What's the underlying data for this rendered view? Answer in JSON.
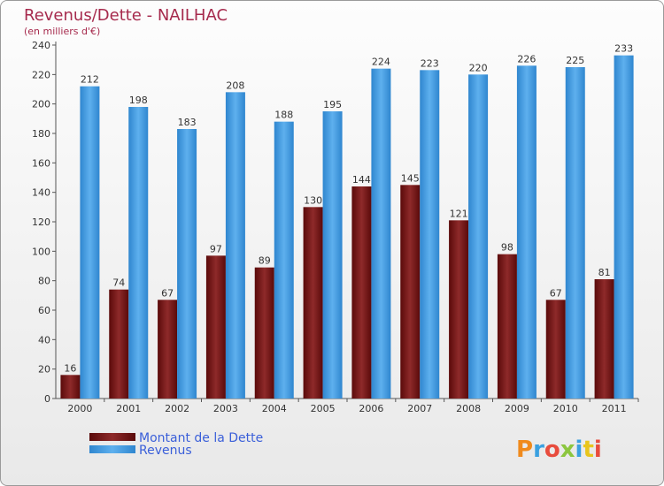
{
  "chart_data": {
    "type": "bar",
    "title": "Revenus/Dette - NAILHAC",
    "subtitle": "(en milliers d'€)",
    "categories": [
      "2000",
      "2001",
      "2002",
      "2003",
      "2004",
      "2005",
      "2006",
      "2007",
      "2008",
      "2009",
      "2010",
      "2011"
    ],
    "series": [
      {
        "name": "Montant de la Dette",
        "color": "#7a1f1f",
        "values": [
          16,
          74,
          67,
          97,
          89,
          130,
          144,
          145,
          121,
          98,
          67,
          81
        ]
      },
      {
        "name": "Revenus",
        "color": "#4a9fe0",
        "values": [
          212,
          198,
          183,
          208,
          188,
          195,
          224,
          223,
          220,
          226,
          225,
          233
        ]
      }
    ],
    "ylim": [
      0,
      240
    ],
    "yticks": [
      0,
      20,
      40,
      60,
      80,
      100,
      120,
      140,
      160,
      180,
      200,
      220,
      240
    ],
    "grid": false,
    "legend_position": "bottom-left"
  },
  "logo": {
    "text": "Proxiti"
  }
}
